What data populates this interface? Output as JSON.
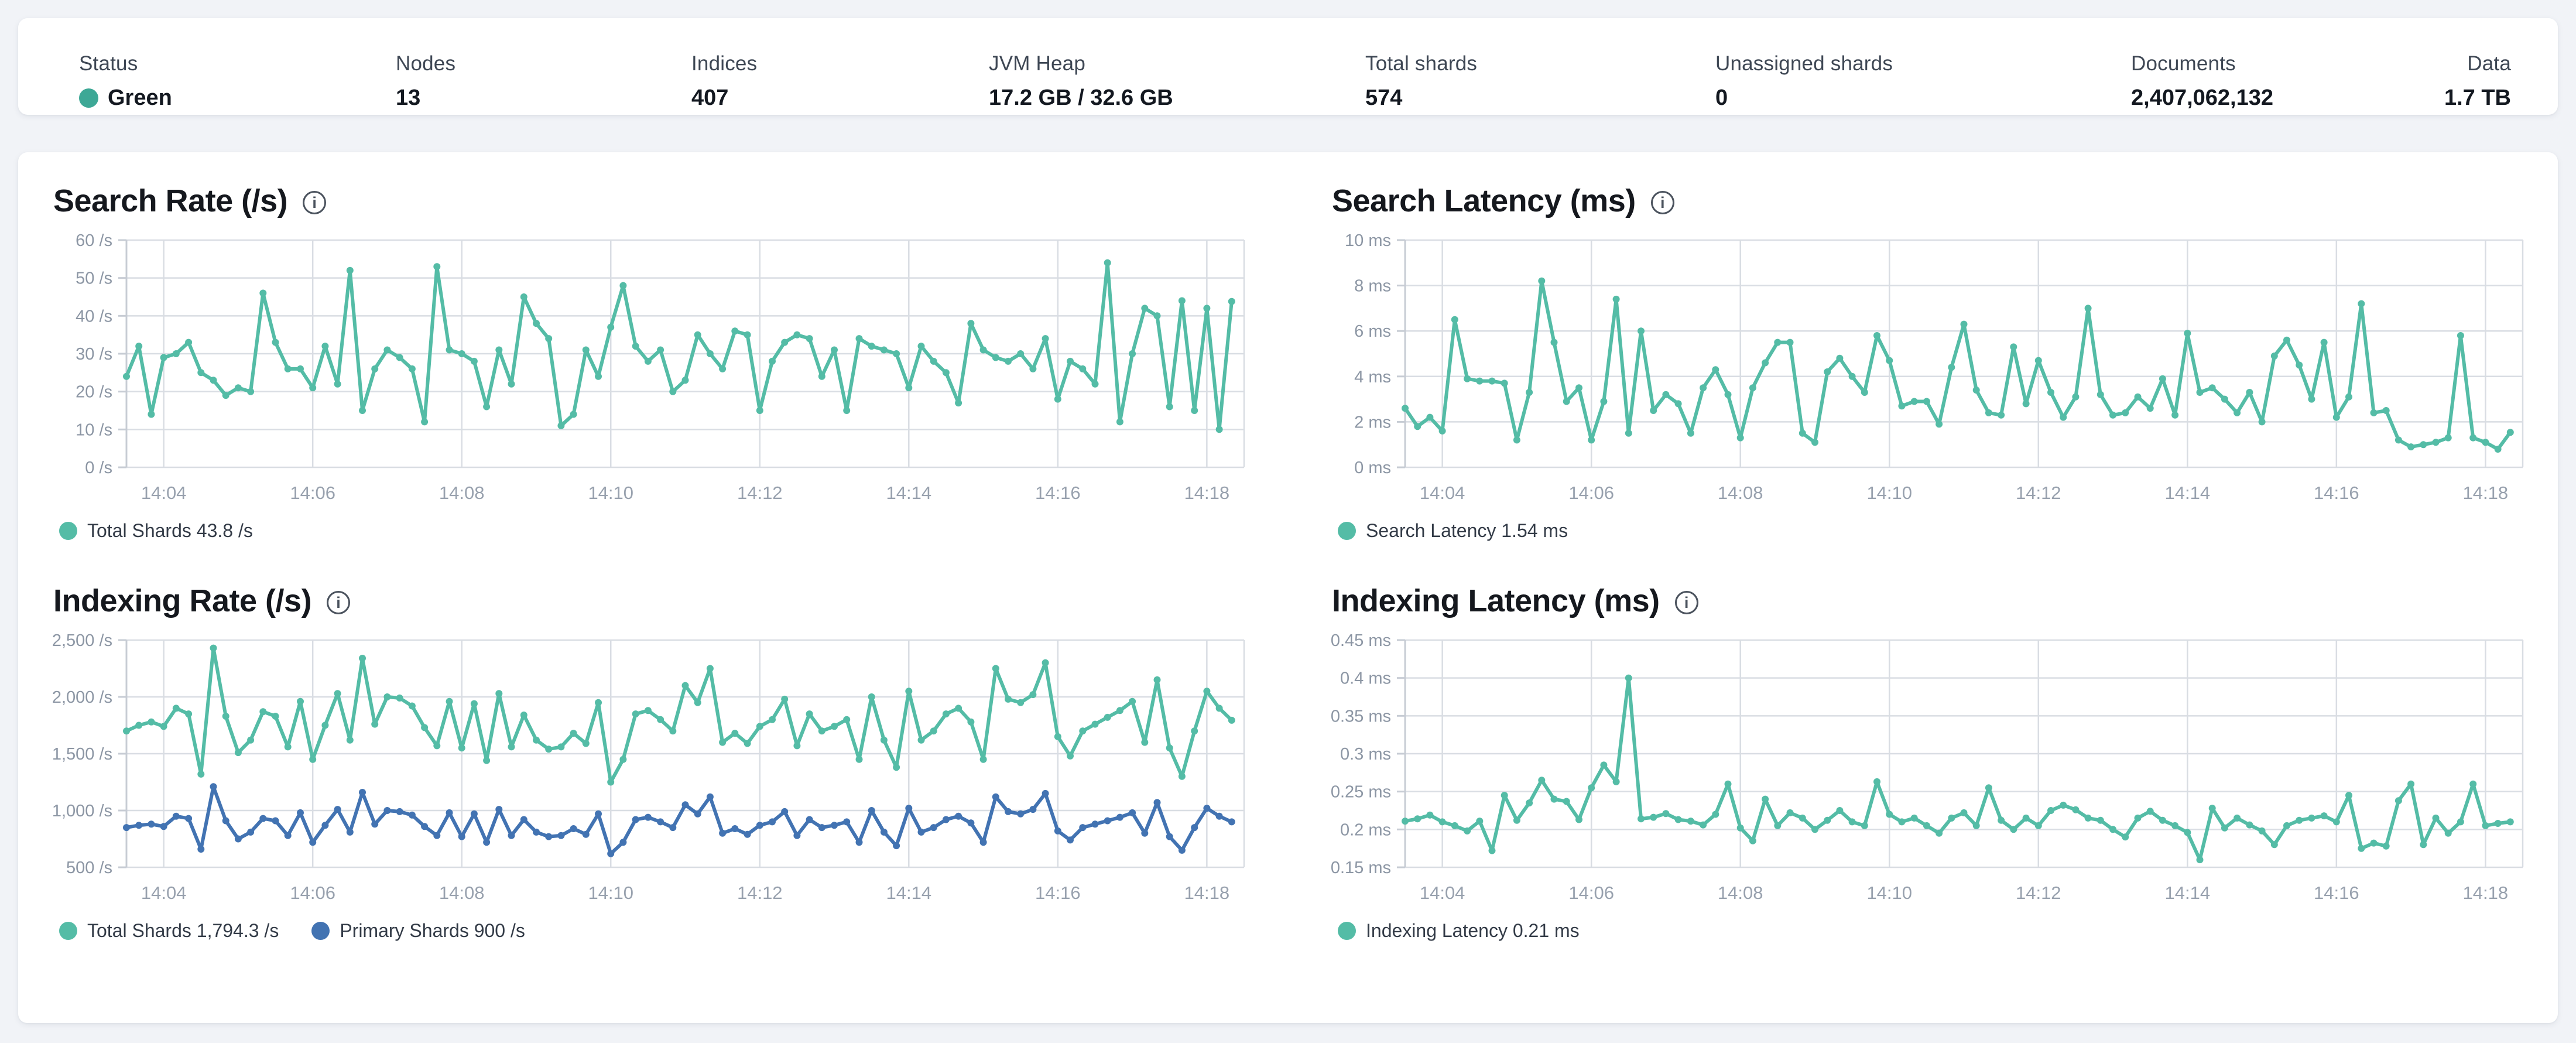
{
  "icons": {
    "info": "i"
  },
  "colors": {
    "teal": "#54BCA6",
    "blue": "#4273B2",
    "status_green": "#3DA896",
    "grid": "#D9DDE3",
    "axis": "#C7CCD4",
    "tick_text": "#8C96A4"
  },
  "header": {
    "stats": [
      {
        "label": "Status",
        "value": "Green",
        "dot_color": "#3DA896"
      },
      {
        "label": "Nodes",
        "value": "13"
      },
      {
        "label": "Indices",
        "value": "407"
      },
      {
        "label": "JVM Heap",
        "value": "17.2 GB / 32.6 GB"
      },
      {
        "label": "Total shards",
        "value": "574"
      },
      {
        "label": "Unassigned shards",
        "value": "0"
      },
      {
        "label": "Documents",
        "value": "2,407,062,132"
      },
      {
        "label": "Data",
        "value": "1.7 TB"
      }
    ]
  },
  "chart_data": [
    {
      "type": "line",
      "id": "search-rate",
      "title": "Search Rate (/s)",
      "ylim": [
        0,
        60
      ],
      "y_ticks": [
        {
          "value": 60,
          "label": "60 /s"
        },
        {
          "value": 50,
          "label": "50 /s"
        },
        {
          "value": 40,
          "label": "40 /s"
        },
        {
          "value": 30,
          "label": "30 /s"
        },
        {
          "value": 20,
          "label": "20 /s"
        },
        {
          "value": 10,
          "label": "10 /s"
        },
        {
          "value": 0,
          "label": "0 /s"
        }
      ],
      "x_count": 90,
      "x_ticks": [
        {
          "index": 3,
          "label": "14:04"
        },
        {
          "index": 15,
          "label": "14:06"
        },
        {
          "index": 27,
          "label": "14:08"
        },
        {
          "index": 39,
          "label": "14:10"
        },
        {
          "index": 51,
          "label": "14:12"
        },
        {
          "index": 63,
          "label": "14:14"
        },
        {
          "index": 75,
          "label": "14:16"
        },
        {
          "index": 87,
          "label": "14:18"
        }
      ],
      "series": [
        {
          "name": "Total Shards",
          "legend_label": "Total Shards 43.8 /s",
          "color": "#54BCA6",
          "values": [
            24,
            32,
            14,
            29,
            30,
            33,
            25,
            23,
            19,
            21,
            20,
            46,
            33,
            26,
            26,
            21,
            32,
            22,
            52,
            15,
            26,
            31,
            29,
            26,
            12,
            53,
            31,
            30,
            28,
            16,
            31,
            22,
            45,
            38,
            34,
            11,
            14,
            31,
            24,
            37,
            48,
            32,
            28,
            31,
            20,
            23,
            35,
            30,
            26,
            36,
            35,
            15,
            28,
            33,
            35,
            34,
            24,
            31,
            15,
            34,
            32,
            31,
            30,
            21,
            32,
            28,
            25,
            17,
            38,
            31,
            29,
            28,
            30,
            26,
            34,
            18,
            28,
            26,
            22,
            54,
            12,
            30,
            42,
            40,
            16,
            44,
            15,
            42,
            10,
            43.8
          ]
        }
      ]
    },
    {
      "type": "line",
      "id": "search-latency",
      "title": "Search Latency (ms)",
      "ylim": [
        0,
        10
      ],
      "y_ticks": [
        {
          "value": 10,
          "label": "10 ms"
        },
        {
          "value": 8,
          "label": "8 ms"
        },
        {
          "value": 6,
          "label": "6 ms"
        },
        {
          "value": 4,
          "label": "4 ms"
        },
        {
          "value": 2,
          "label": "2 ms"
        },
        {
          "value": 0,
          "label": "0 ms"
        }
      ],
      "x_count": 90,
      "x_ticks": [
        {
          "index": 3,
          "label": "14:04"
        },
        {
          "index": 15,
          "label": "14:06"
        },
        {
          "index": 27,
          "label": "14:08"
        },
        {
          "index": 39,
          "label": "14:10"
        },
        {
          "index": 51,
          "label": "14:12"
        },
        {
          "index": 63,
          "label": "14:14"
        },
        {
          "index": 75,
          "label": "14:16"
        },
        {
          "index": 87,
          "label": "14:18"
        }
      ],
      "series": [
        {
          "name": "Search Latency",
          "legend_label": "Search Latency 1.54 ms",
          "color": "#54BCA6",
          "values": [
            2.6,
            1.8,
            2.2,
            1.6,
            6.5,
            3.9,
            3.8,
            3.8,
            3.7,
            1.2,
            3.3,
            8.2,
            5.5,
            2.9,
            3.5,
            1.2,
            2.9,
            7.4,
            1.5,
            6.0,
            2.5,
            3.2,
            2.8,
            1.5,
            3.5,
            4.3,
            3.2,
            1.3,
            3.5,
            4.6,
            5.5,
            5.5,
            1.5,
            1.1,
            4.2,
            4.8,
            4.0,
            3.3,
            5.8,
            4.7,
            2.7,
            2.9,
            2.9,
            1.9,
            4.4,
            6.3,
            3.4,
            2.4,
            2.3,
            5.3,
            2.8,
            4.7,
            3.3,
            2.2,
            3.1,
            7.0,
            3.2,
            2.3,
            2.4,
            3.1,
            2.6,
            3.9,
            2.3,
            5.9,
            3.3,
            3.5,
            3.0,
            2.4,
            3.3,
            2.0,
            4.9,
            5.6,
            4.5,
            3.0,
            5.5,
            2.2,
            3.1,
            7.2,
            2.4,
            2.5,
            1.2,
            0.9,
            1.0,
            1.1,
            1.3,
            5.8,
            1.3,
            1.1,
            0.8,
            1.54
          ]
        }
      ]
    },
    {
      "type": "line",
      "id": "indexing-rate",
      "title": "Indexing Rate (/s)",
      "ylim": [
        500,
        2500
      ],
      "y_ticks": [
        {
          "value": 2500,
          "label": "2,500 /s"
        },
        {
          "value": 2000,
          "label": "2,000 /s"
        },
        {
          "value": 1500,
          "label": "1,500 /s"
        },
        {
          "value": 1000,
          "label": "1,000 /s"
        },
        {
          "value": 500,
          "label": "500 /s"
        }
      ],
      "x_count": 90,
      "x_ticks": [
        {
          "index": 3,
          "label": "14:04"
        },
        {
          "index": 15,
          "label": "14:06"
        },
        {
          "index": 27,
          "label": "14:08"
        },
        {
          "index": 39,
          "label": "14:10"
        },
        {
          "index": 51,
          "label": "14:12"
        },
        {
          "index": 63,
          "label": "14:14"
        },
        {
          "index": 75,
          "label": "14:16"
        },
        {
          "index": 87,
          "label": "14:18"
        }
      ],
      "series": [
        {
          "name": "Total Shards",
          "legend_label": "Total Shards 1,794.3 /s",
          "color": "#54BCA6",
          "values": [
            1700,
            1750,
            1780,
            1740,
            1900,
            1850,
            1320,
            2430,
            1830,
            1510,
            1620,
            1870,
            1830,
            1560,
            1960,
            1450,
            1750,
            2030,
            1620,
            2340,
            1760,
            2000,
            1990,
            1920,
            1730,
            1570,
            1960,
            1550,
            1940,
            1440,
            2030,
            1560,
            1840,
            1620,
            1540,
            1560,
            1680,
            1590,
            1950,
            1250,
            1450,
            1850,
            1880,
            1800,
            1700,
            2100,
            1950,
            2250,
            1600,
            1680,
            1590,
            1740,
            1800,
            1980,
            1570,
            1850,
            1700,
            1740,
            1800,
            1450,
            2000,
            1620,
            1380,
            2050,
            1620,
            1700,
            1850,
            1900,
            1780,
            1450,
            2250,
            1980,
            1950,
            2020,
            2300,
            1650,
            1480,
            1700,
            1760,
            1820,
            1880,
            1960,
            1600,
            2150,
            1550,
            1300,
            1700,
            2050,
            1900,
            1794.3
          ]
        },
        {
          "name": "Primary Shards",
          "legend_label": "Primary Shards 900 /s",
          "color": "#4273B2",
          "values": [
            850,
            870,
            880,
            860,
            950,
            930,
            660,
            1210,
            910,
            750,
            810,
            930,
            910,
            780,
            980,
            720,
            870,
            1010,
            810,
            1160,
            880,
            1000,
            990,
            960,
            860,
            780,
            980,
            770,
            970,
            720,
            1010,
            780,
            920,
            810,
            770,
            780,
            840,
            790,
            970,
            620,
            720,
            920,
            940,
            900,
            850,
            1050,
            970,
            1120,
            800,
            840,
            790,
            870,
            900,
            990,
            780,
            920,
            850,
            870,
            900,
            720,
            1000,
            810,
            690,
            1020,
            810,
            850,
            920,
            950,
            890,
            720,
            1120,
            990,
            970,
            1010,
            1150,
            820,
            740,
            850,
            880,
            910,
            940,
            980,
            800,
            1070,
            770,
            650,
            850,
            1020,
            950,
            900
          ]
        }
      ]
    },
    {
      "type": "line",
      "id": "indexing-latency",
      "title": "Indexing Latency (ms)",
      "ylim": [
        0.15,
        0.45
      ],
      "y_ticks": [
        {
          "value": 0.45,
          "label": "0.45 ms"
        },
        {
          "value": 0.4,
          "label": "0.4 ms"
        },
        {
          "value": 0.35,
          "label": "0.35 ms"
        },
        {
          "value": 0.3,
          "label": "0.3 ms"
        },
        {
          "value": 0.25,
          "label": "0.25 ms"
        },
        {
          "value": 0.2,
          "label": "0.2 ms"
        },
        {
          "value": 0.15,
          "label": "0.15 ms"
        }
      ],
      "x_count": 90,
      "x_ticks": [
        {
          "index": 3,
          "label": "14:04"
        },
        {
          "index": 15,
          "label": "14:06"
        },
        {
          "index": 27,
          "label": "14:08"
        },
        {
          "index": 39,
          "label": "14:10"
        },
        {
          "index": 51,
          "label": "14:12"
        },
        {
          "index": 63,
          "label": "14:14"
        },
        {
          "index": 75,
          "label": "14:16"
        },
        {
          "index": 87,
          "label": "14:18"
        }
      ],
      "series": [
        {
          "name": "Indexing Latency",
          "legend_label": "Indexing Latency 0.21 ms",
          "color": "#54BCA6",
          "values": [
            0.211,
            0.214,
            0.219,
            0.21,
            0.205,
            0.198,
            0.211,
            0.172,
            0.245,
            0.212,
            0.235,
            0.265,
            0.24,
            0.237,
            0.213,
            0.255,
            0.285,
            0.263,
            0.4,
            0.214,
            0.216,
            0.221,
            0.213,
            0.211,
            0.206,
            0.22,
            0.26,
            0.202,
            0.185,
            0.24,
            0.205,
            0.222,
            0.215,
            0.2,
            0.212,
            0.225,
            0.21,
            0.205,
            0.263,
            0.22,
            0.21,
            0.215,
            0.205,
            0.195,
            0.215,
            0.222,
            0.205,
            0.255,
            0.212,
            0.2,
            0.215,
            0.205,
            0.225,
            0.232,
            0.226,
            0.215,
            0.212,
            0.2,
            0.19,
            0.215,
            0.224,
            0.212,
            0.205,
            0.196,
            0.16,
            0.228,
            0.202,
            0.215,
            0.206,
            0.198,
            0.18,
            0.205,
            0.212,
            0.215,
            0.218,
            0.21,
            0.245,
            0.175,
            0.182,
            0.178,
            0.238,
            0.26,
            0.18,
            0.215,
            0.195,
            0.21,
            0.26,
            0.205,
            0.208,
            0.21
          ]
        }
      ]
    }
  ]
}
